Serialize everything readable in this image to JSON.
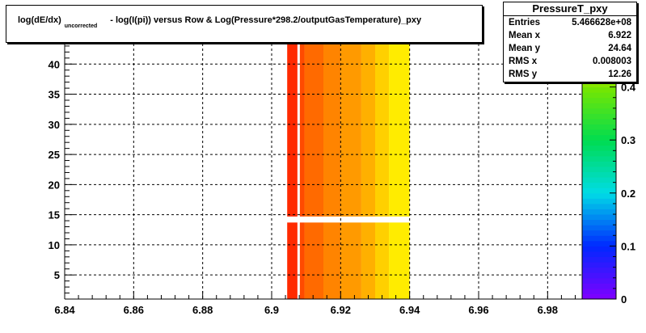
{
  "chart_data": {
    "type": "heatmap",
    "title_part1": "log(dE/dx)",
    "title_sub": "uncorrected",
    "title_part2": "- log(I(pi)) versus Row & Log(Pressure*298.2/outputGasTemperature)_pxy",
    "xlim": [
      6.84,
      6.99
    ],
    "ylim": [
      1,
      45
    ],
    "zlim": [
      0,
      0.5
    ],
    "x_ticks": [
      "6.84",
      "6.86",
      "6.88",
      "6.9",
      "6.92",
      "6.94",
      "6.96",
      "6.98"
    ],
    "y_ticks": [
      "5",
      "10",
      "15",
      "20",
      "25",
      "30",
      "35",
      "40"
    ],
    "z_ticks": [
      "0",
      "0.1",
      "0.2",
      "0.3",
      "0.4"
    ],
    "grid": "dashed",
    "data_region": {
      "x_range": [
        6.9045,
        6.94
      ],
      "y_range": [
        1,
        45
      ],
      "gap_row": 14,
      "gap_x": 6.9077,
      "columns": [
        {
          "x0": 6.9045,
          "x1": 6.9077,
          "z": 0.465
        },
        {
          "x0": 6.9077,
          "x1": 6.9095,
          "z": 0.47
        },
        {
          "x0": 6.9095,
          "x1": 6.915,
          "z": 0.475
        },
        {
          "x0": 6.915,
          "x1": 6.92,
          "z": 0.478
        },
        {
          "x0": 6.92,
          "x1": 6.926,
          "z": 0.482
        },
        {
          "x0": 6.926,
          "x1": 6.93,
          "z": 0.486
        },
        {
          "x0": 6.93,
          "x1": 6.934,
          "z": 0.49
        },
        {
          "x0": 6.934,
          "x1": 6.94,
          "z": 0.495
        }
      ]
    }
  },
  "stats": {
    "name": "PressureT_pxy",
    "rows": [
      {
        "label": "Entries",
        "value": "5.466628e+08"
      },
      {
        "label": "Mean x",
        "value": "6.922"
      },
      {
        "label": "Mean y",
        "value": "24.64"
      },
      {
        "label": "RMS x",
        "value": "0.008003"
      },
      {
        "label": "RMS y",
        "value": "12.26"
      }
    ]
  }
}
